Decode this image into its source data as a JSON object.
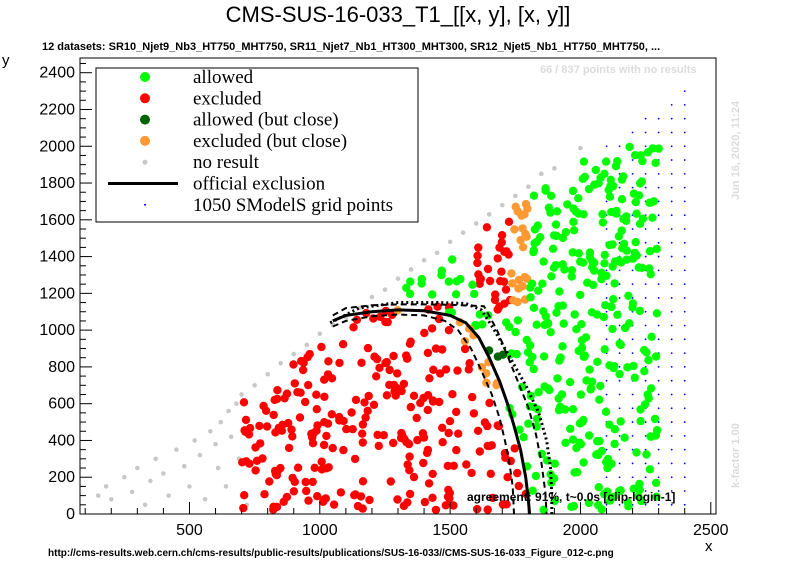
{
  "title": "CMS-SUS-16-033_T1_[[x, y], [x, y]]",
  "subtitle": "12 datasets: SR10_Njet9_Nb3_HT750_MHT750, SR11_Njet7_Nb1_HT300_MHT300, SR12_Njet5_Nb1_HT750_MHT750,  ...",
  "points_note": "66 / 837 points with no results",
  "date_note": "Jun 16, 2020, 11:24",
  "kfactor_note": "k-factor 1.00",
  "agreement": "agreement: 91%, t~0.0s [clip-login-1]",
  "url": "http://cms-results.web.cern.ch/cms-results/public-results/publications/SUS-16-033//CMS-SUS-16-033_Figure_012-c.png",
  "colors": {
    "allowed": "#00ff00",
    "excluded": "#ff0000",
    "allowed_close": "#006400",
    "excluded_close": "#ff9933",
    "no_result": "#c8c8c8",
    "grid_point": "#0000ff",
    "official": "#000000"
  },
  "chart_data": {
    "type": "scatter",
    "xlabel": "x",
    "ylabel": "y",
    "xlim": [
      80,
      2520
    ],
    "ylim": [
      0,
      2480
    ],
    "x_ticks": [
      500,
      1000,
      1500,
      2000,
      2500
    ],
    "y_ticks": [
      0,
      200,
      400,
      600,
      800,
      1000,
      1200,
      1400,
      1600,
      1800,
      2000,
      2200,
      2400
    ],
    "legend": {
      "placement": "top-left",
      "entries": [
        {
          "key": "allowed",
          "label": "allowed",
          "symbol": "dot"
        },
        {
          "key": "excluded",
          "label": "excluded",
          "symbol": "dot"
        },
        {
          "key": "allowed_close",
          "label": "allowed (but close)",
          "symbol": "dot"
        },
        {
          "key": "excluded_close",
          "label": "excluded (but close)",
          "symbol": "dot"
        },
        {
          "key": "no_result",
          "label": "no result",
          "symbol": "small-dot"
        },
        {
          "key": "official",
          "label": "official exclusion",
          "symbol": "line"
        },
        {
          "key": "grid_point",
          "label": "1050 SModelS grid points",
          "symbol": "tiny-dot"
        }
      ]
    },
    "official_exclusion": [
      [
        1050,
        1050
      ],
      [
        1100,
        1080
      ],
      [
        1200,
        1100
      ],
      [
        1300,
        1110
      ],
      [
        1400,
        1105
      ],
      [
        1500,
        1080
      ],
      [
        1560,
        1040
      ],
      [
        1610,
        960
      ],
      [
        1650,
        850
      ],
      [
        1690,
        720
      ],
      [
        1720,
        600
      ],
      [
        1745,
        480
      ],
      [
        1770,
        350
      ],
      [
        1790,
        200
      ],
      [
        1800,
        80
      ],
      [
        1805,
        0
      ]
    ],
    "official_exclusion_minus": [
      [
        1050,
        1020
      ],
      [
        1100,
        1050
      ],
      [
        1200,
        1075
      ],
      [
        1300,
        1085
      ],
      [
        1400,
        1080
      ],
      [
        1480,
        1050
      ],
      [
        1530,
        1000
      ],
      [
        1580,
        900
      ],
      [
        1620,
        780
      ],
      [
        1660,
        650
      ],
      [
        1690,
        520
      ],
      [
        1710,
        400
      ],
      [
        1725,
        300
      ],
      [
        1740,
        150
      ],
      [
        1745,
        0
      ]
    ],
    "official_exclusion_plus": [
      [
        1050,
        1080
      ],
      [
        1100,
        1120
      ],
      [
        1200,
        1135
      ],
      [
        1300,
        1140
      ],
      [
        1400,
        1140
      ],
      [
        1500,
        1138
      ],
      [
        1630,
        1130
      ],
      [
        1680,
        1000
      ],
      [
        1720,
        860
      ],
      [
        1760,
        720
      ],
      [
        1800,
        580
      ],
      [
        1830,
        430
      ],
      [
        1850,
        280
      ],
      [
        1865,
        120
      ],
      [
        1870,
        0
      ]
    ],
    "smodels_exclusion": [
      [
        1040,
        1040
      ],
      [
        1150,
        1120
      ],
      [
        1300,
        1150
      ],
      [
        1450,
        1150
      ],
      [
        1560,
        1145
      ],
      [
        1620,
        1110
      ],
      [
        1670,
        1000
      ],
      [
        1730,
        850
      ],
      [
        1790,
        700
      ],
      [
        1840,
        550
      ],
      [
        1870,
        400
      ],
      [
        1885,
        250
      ],
      [
        1890,
        100
      ],
      [
        1890,
        0
      ]
    ],
    "no_result_points": [
      [
        150,
        100
      ],
      [
        180,
        150
      ],
      [
        200,
        80
      ],
      [
        250,
        200
      ],
      [
        280,
        120
      ],
      [
        300,
        250
      ],
      [
        330,
        50
      ],
      [
        350,
        180
      ],
      [
        370,
        300
      ],
      [
        400,
        220
      ],
      [
        420,
        100
      ],
      [
        450,
        350
      ],
      [
        480,
        260
      ],
      [
        500,
        150
      ],
      [
        520,
        400
      ],
      [
        540,
        320
      ],
      [
        560,
        80
      ],
      [
        580,
        450
      ],
      [
        600,
        380
      ],
      [
        610,
        250
      ],
      [
        620,
        500
      ],
      [
        640,
        150
      ],
      [
        650,
        560
      ],
      [
        660,
        420
      ],
      [
        680,
        600
      ],
      [
        690,
        300
      ],
      [
        700,
        650
      ],
      [
        720,
        50
      ],
      [
        750,
        700
      ],
      [
        800,
        760
      ],
      [
        850,
        820
      ],
      [
        900,
        870
      ],
      [
        950,
        920
      ],
      [
        1000,
        980
      ],
      [
        1050,
        1030
      ],
      [
        1100,
        1070
      ],
      [
        1150,
        1120
      ],
      [
        1200,
        1180
      ],
      [
        1250,
        1220
      ],
      [
        1300,
        1280
      ],
      [
        1350,
        1330
      ],
      [
        1400,
        1380
      ],
      [
        1450,
        1420
      ],
      [
        1500,
        1480
      ],
      [
        1550,
        1530
      ],
      [
        1600,
        1580
      ],
      [
        1650,
        1630
      ],
      [
        1700,
        1680
      ],
      [
        1750,
        1730
      ],
      [
        1800,
        1780
      ],
      [
        1850,
        1850
      ],
      [
        1900,
        1880
      ],
      [
        2000,
        1990
      ]
    ]
  }
}
